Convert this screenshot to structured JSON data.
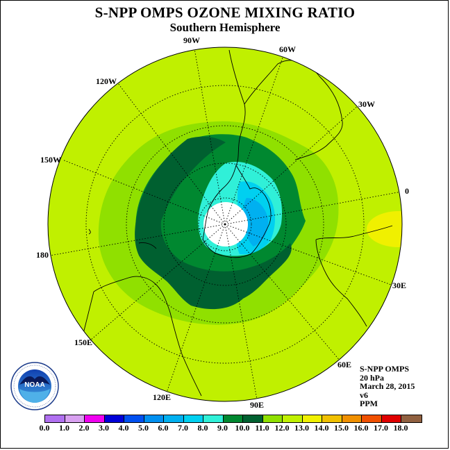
{
  "title": "S-NPP OMPS OZONE MIXING RATIO",
  "subtitle": "Southern Hemisphere",
  "longitude_labels": [
    "90W",
    "60W",
    "120W",
    "30W",
    "150W",
    "0",
    "180",
    "30E",
    "150E",
    "60E",
    "120E",
    "90E"
  ],
  "info": {
    "instrument": "S-NPP OMPS",
    "level": "20 hPa",
    "date": "March 28, 2015",
    "version": "v6",
    "units": "PPM"
  },
  "logo_text": "NOAA",
  "colorbar": {
    "ticks": [
      "0.0",
      "1.0",
      "2.0",
      "3.0",
      "4.0",
      "5.0",
      "6.0",
      "7.0",
      "8.0",
      "9.0",
      "10.0",
      "11.0",
      "12.0",
      "13.0",
      "14.0",
      "15.0",
      "16.0",
      "17.0",
      "18.0"
    ],
    "colors": [
      "#b070f0",
      "#d8a0f0",
      "#f000f0",
      "#0000d8",
      "#0050f0",
      "#0090f0",
      "#00b0f0",
      "#00d0f0",
      "#30f0d8",
      "#008830",
      "#006030",
      "#90e000",
      "#c0f000",
      "#f0f000",
      "#f0c000",
      "#f09000",
      "#f05000",
      "#e00000",
      "#906040"
    ]
  },
  "map_colors": {
    "outer": "#c0f000",
    "ring11": "#90e000",
    "ring9": "#008830",
    "ring10": "#006030",
    "ring8": "#30f0d8",
    "ring7": "#00d0f0",
    "ring6": "#00b0f0",
    "ring5": "#0090f0",
    "high13": "#f0f000",
    "nodata": "#ffffff"
  }
}
